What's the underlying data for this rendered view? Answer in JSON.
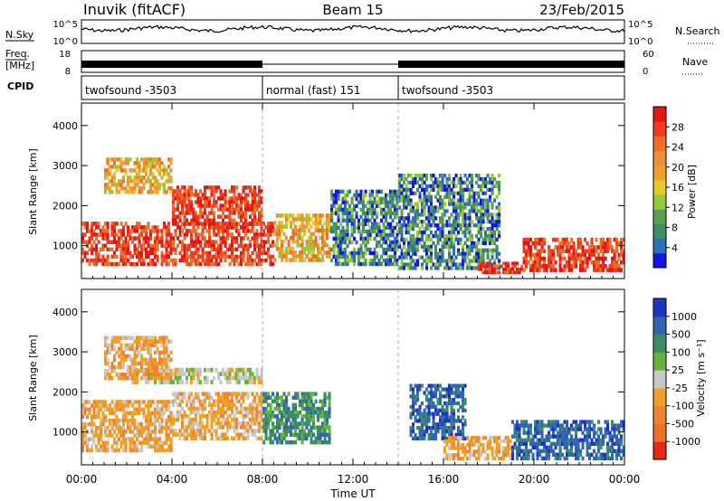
{
  "header": {
    "station": "Inuvik (fitACF)",
    "beam": "Beam 15",
    "date": "23/Feb/2015"
  },
  "noise_panel": {
    "left_label": "N.Sky",
    "left_ticks": [
      "10^5",
      "10^0"
    ],
    "right_label": "N.Search",
    "right_ticks": [
      "10^5",
      "10^0"
    ]
  },
  "freq_panel": {
    "left_label_1": "Freq.",
    "left_label_2": "[MHz]",
    "left_ticks": [
      "18",
      "8"
    ],
    "right_label": "Nave",
    "right_ticks": [
      "60",
      "0"
    ]
  },
  "cpid_panel": {
    "label": "CPID",
    "segments": [
      {
        "label": "twofsound -3503",
        "start_h": 0,
        "end_h": 8
      },
      {
        "label": "normal (fast) 151",
        "start_h": 8,
        "end_h": 14
      },
      {
        "label": "twofsound -3503",
        "start_h": 14,
        "end_h": 24
      }
    ]
  },
  "x_axis": {
    "ticks": [
      "00:00",
      "04:00",
      "08:00",
      "12:00",
      "16:00",
      "20:00",
      "00:00"
    ],
    "label": "Time UT"
  },
  "power_panel": {
    "ylabel": "Slant Range [km]",
    "yticks": [
      "1000",
      "2000",
      "3000",
      "4000"
    ],
    "colorbar_label": "Power [dB]",
    "colorbar_ticks": [
      "4",
      "8",
      "12",
      "16",
      "20",
      "24",
      "28"
    ],
    "colors": [
      "#1414e6",
      "#2e6eb4",
      "#3c8c64",
      "#5aa050",
      "#96c83c",
      "#e6c828",
      "#f0a028",
      "#f08c3c",
      "#f06e28",
      "#f03c1e",
      "#e61414"
    ]
  },
  "velocity_panel": {
    "ylabel": "Slant Range [km]",
    "yticks": [
      "1000",
      "2000",
      "3000",
      "4000"
    ],
    "colorbar_label": "Velocity [m s⁻¹]",
    "colorbar_ticks": [
      "1000",
      "500",
      "100",
      "25",
      "-25",
      "-100",
      "-500",
      "-1000"
    ],
    "colors": [
      "#1e32c8",
      "#3264b4",
      "#3c8c64",
      "#64b43c",
      "#c8c8c8",
      "#f0a028",
      "#f08232",
      "#f06e28",
      "#e62814"
    ]
  },
  "chart_data": {
    "type": "heatmap",
    "time_range_h": [
      0,
      24
    ],
    "range_km": [
      180,
      4560
    ],
    "mode_change_times_h": [
      8,
      14
    ],
    "power_regions": [
      {
        "t": [
          0.0,
          8.5
        ],
        "r": [
          500,
          1600
        ],
        "level": "high"
      },
      {
        "t": [
          4.0,
          8.0
        ],
        "r": [
          1500,
          2500
        ],
        "level": "high"
      },
      {
        "t": [
          8.5,
          11.0
        ],
        "r": [
          600,
          1800
        ],
        "level": "mid"
      },
      {
        "t": [
          11.0,
          14.0
        ],
        "r": [
          500,
          2400
        ],
        "level": "low"
      },
      {
        "t": [
          14.0,
          18.5
        ],
        "r": [
          400,
          2800
        ],
        "level": "low"
      },
      {
        "t": [
          17.5,
          19.5
        ],
        "r": [
          300,
          600
        ],
        "level": "high"
      },
      {
        "t": [
          19.5,
          24.0
        ],
        "r": [
          350,
          1200
        ],
        "level": "high"
      },
      {
        "t": [
          1.0,
          4.0
        ],
        "r": [
          2300,
          3200
        ],
        "level": "mid"
      }
    ],
    "velocity_regions": [
      {
        "t": [
          0.0,
          4.0
        ],
        "r": [
          500,
          1800
        ],
        "v": "-100"
      },
      {
        "t": [
          4.0,
          8.0
        ],
        "r": [
          800,
          2000
        ],
        "v": "-100"
      },
      {
        "t": [
          2.0,
          8.0
        ],
        "r": [
          2200,
          2600
        ],
        "v": "25"
      },
      {
        "t": [
          8.0,
          11.0
        ],
        "r": [
          700,
          2000
        ],
        "v": "100"
      },
      {
        "t": [
          14.5,
          17.0
        ],
        "r": [
          800,
          2200
        ],
        "v": "500"
      },
      {
        "t": [
          16.0,
          19.0
        ],
        "r": [
          300,
          900
        ],
        "v": "-100"
      },
      {
        "t": [
          19.0,
          24.0
        ],
        "r": [
          300,
          1300
        ],
        "v": "500"
      },
      {
        "t": [
          1.0,
          4.0
        ],
        "r": [
          2300,
          3400
        ],
        "v": "-100"
      }
    ]
  }
}
